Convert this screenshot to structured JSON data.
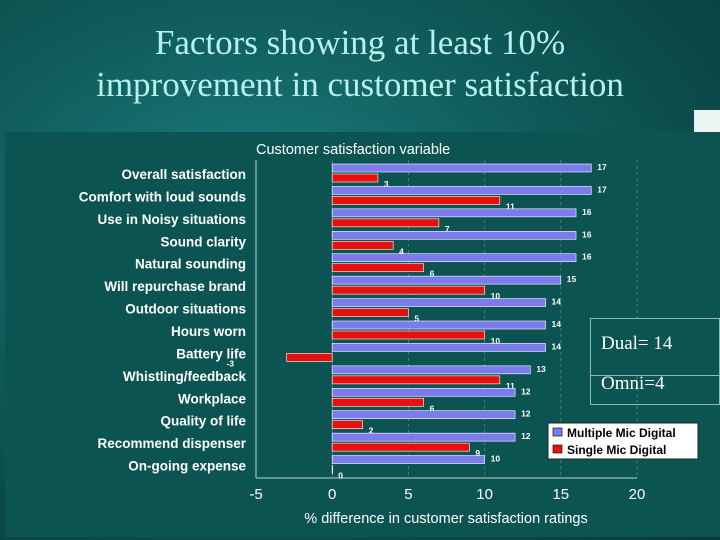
{
  "slide": {
    "title_line1": "Factors showing at least  10%",
    "title_line2": "improvement in customer satisfaction"
  },
  "annotations": {
    "dual": "Dual= 14",
    "omni": "Omni=4"
  },
  "colors": {
    "multiple": "#7b7bee",
    "single": "#e8100e",
    "background": "#0f5c5b",
    "title": "#b8f0ee"
  },
  "chart_data": {
    "type": "bar",
    "orientation": "horizontal",
    "title": "Customer satisfaction variable",
    "xlabel": "% difference in customer satisfaction ratings",
    "ylabel": "",
    "xlim": [
      -5,
      20
    ],
    "xticks": [
      "-5",
      "0",
      "5",
      "10",
      "15",
      "20"
    ],
    "grid": true,
    "legend": "bottom-right",
    "categories": [
      "Overall satisfaction",
      "Comfort with loud sounds",
      "Use in Noisy situations",
      "Sound clarity",
      "Natural sounding",
      "Will repurchase brand",
      "Outdoor situations",
      "Hours worn",
      "Battery life",
      "Whistling/feedback",
      "Workplace",
      "Quality of life",
      "Recommend dispenser",
      "On-going expense"
    ],
    "series": [
      {
        "name": "Multiple Mic Digital",
        "values": [
          17,
          17,
          16,
          16,
          16,
          15,
          14,
          14,
          14,
          13,
          12,
          12,
          12,
          10
        ]
      },
      {
        "name": "Single Mic Digital",
        "values": [
          3,
          11,
          7,
          4,
          6,
          10,
          5,
          10,
          -3,
          11,
          6,
          2,
          9,
          0
        ]
      }
    ]
  }
}
